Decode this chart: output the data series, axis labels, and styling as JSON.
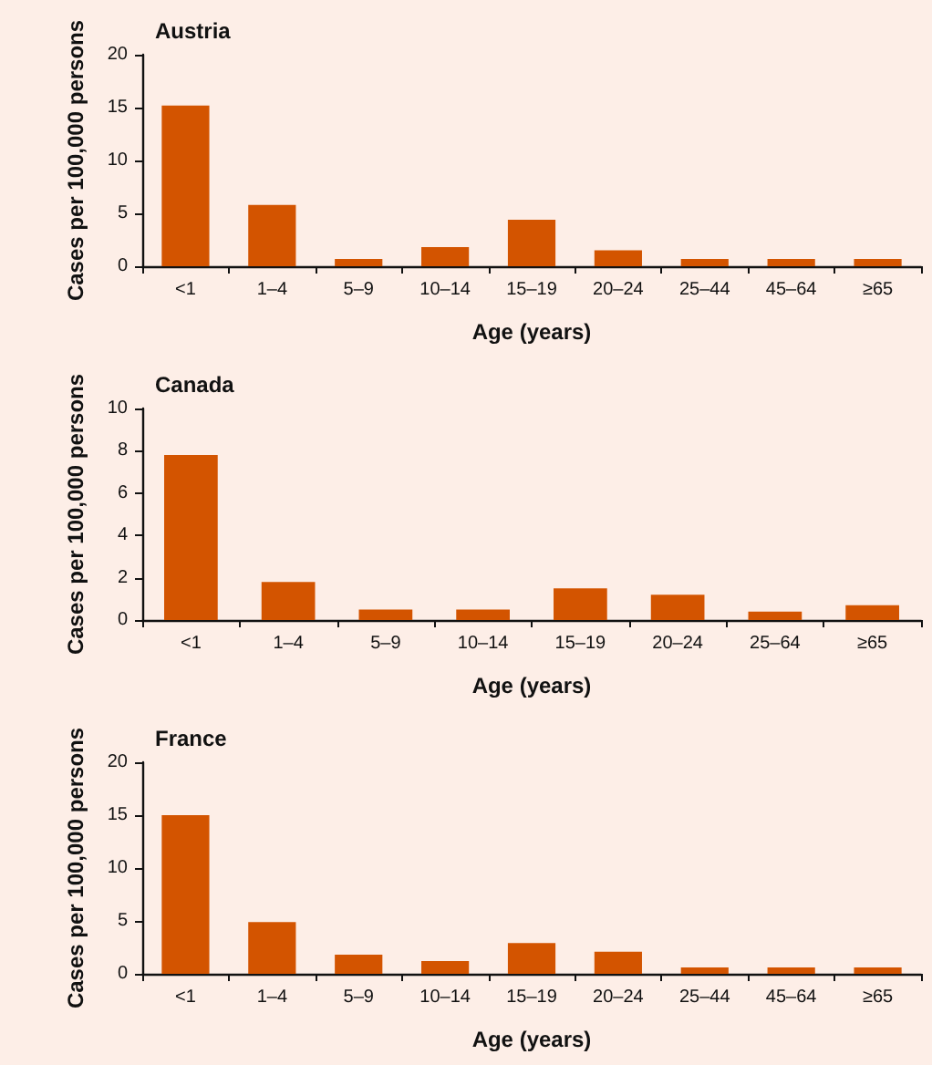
{
  "chart_data": [
    {
      "type": "bar",
      "title": "Austria",
      "xlabel": "Age (years)",
      "ylabel": "Cases per 100,000 persons",
      "categories": [
        "<1",
        "1–4",
        "5–9",
        "10–14",
        "15–19",
        "20–24",
        "25–44",
        "45–64",
        "≥65"
      ],
      "values": [
        15.2,
        5.8,
        0.7,
        1.8,
        4.4,
        1.5,
        0.7,
        0.7,
        0.7
      ],
      "color": "#d35400",
      "ylim": [
        0,
        20
      ],
      "yticks": [
        0,
        5,
        10,
        15,
        20
      ],
      "grid": false
    },
    {
      "type": "bar",
      "title": "Canada",
      "xlabel": "Age (years)",
      "ylabel": "Cases per 100,000 persons",
      "categories": [
        "<1",
        "1–4",
        "5–9",
        "10–14",
        "15–19",
        "20–24",
        "25–64",
        "≥65"
      ],
      "values": [
        7.8,
        1.8,
        0.5,
        0.5,
        1.5,
        1.2,
        0.4,
        0.7
      ],
      "color": "#d35400",
      "ylim": [
        0,
        10
      ],
      "yticks": [
        0,
        2,
        4,
        6,
        8,
        10
      ],
      "grid": false
    },
    {
      "type": "bar",
      "title": "France",
      "xlabel": "Age (years)",
      "ylabel": "Cases per 100,000 persons",
      "categories": [
        "<1",
        "1–4",
        "5–9",
        "10–14",
        "15–19",
        "20–24",
        "25–44",
        "45–64",
        "≥65"
      ],
      "values": [
        15.0,
        4.9,
        1.8,
        1.2,
        2.9,
        2.1,
        0.6,
        0.6,
        0.6
      ],
      "color": "#d35400",
      "ylim": [
        0,
        20
      ],
      "yticks": [
        0,
        5,
        10,
        15,
        20
      ],
      "grid": false
    }
  ]
}
